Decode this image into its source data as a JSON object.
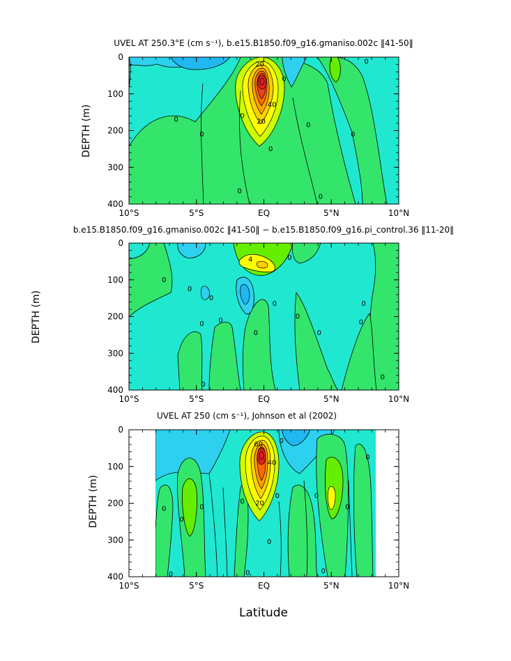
{
  "chart_data": [
    {
      "type": "heatmap",
      "title": "UVEL AT 250.3°E (cm s⁻¹), b.e15.B1850.f09_g16.gmaniso.002c ‖41-50‖",
      "ylabel": "DEPTH (m)",
      "xlabel": "",
      "x_ticks": [
        "10°S",
        "5°S",
        "EQ",
        "5°N",
        "10°N"
      ],
      "y_ticks": [
        "0",
        "100",
        "200",
        "300",
        "400"
      ],
      "xlim": [
        -10,
        10
      ],
      "ylim": [
        400,
        0
      ],
      "colors": [
        "#2ed0f0",
        "#20e8d0",
        "#33e66b",
        "#66ee00",
        "#ffff00",
        "#ffb000",
        "#ff6600",
        "#e22020"
      ],
      "contour_labels": [
        {
          "text": "20",
          "x": -0.3,
          "y": 20
        },
        {
          "text": "0",
          "x": -1.6,
          "y": 160
        },
        {
          "text": "0",
          "x": -6.5,
          "y": 170
        },
        {
          "text": "0",
          "x": -4.6,
          "y": 210
        },
        {
          "text": "40",
          "x": 0.6,
          "y": 130
        },
        {
          "text": "20",
          "x": -0.2,
          "y": 175
        },
        {
          "text": "0",
          "x": 0.5,
          "y": 250
        },
        {
          "text": "0",
          "x": 3.3,
          "y": 185
        },
        {
          "text": "0",
          "x": 6.6,
          "y": 210
        },
        {
          "text": "0",
          "x": 7.6,
          "y": 12
        },
        {
          "text": "0",
          "x": 1.5,
          "y": 60
        },
        {
          "text": "0",
          "x": -1.8,
          "y": 365
        },
        {
          "text": "0",
          "x": 4.2,
          "y": 380
        }
      ]
    },
    {
      "type": "heatmap",
      "title": "b.e15.B1850.f09_g16.gmaniso.002c ‖41-50‖ − b.e15.B1850.f09_g16.pi_control.36 ‖11-20‖",
      "ylabel": "DEPTH (m)",
      "xlabel": "",
      "x_ticks": [
        "10°S",
        "5°S",
        "EQ",
        "5°N",
        "10°N"
      ],
      "y_ticks": [
        "0",
        "100",
        "200",
        "300",
        "400"
      ],
      "xlim": [
        -10,
        10
      ],
      "ylim": [
        400,
        0
      ],
      "contour_labels": [
        {
          "text": "4",
          "x": -1.0,
          "y": 45
        },
        {
          "text": "0",
          "x": -7.4,
          "y": 100
        },
        {
          "text": "0",
          "x": -5.5,
          "y": 125
        },
        {
          "text": "0",
          "x": 1.9,
          "y": 40
        },
        {
          "text": "0",
          "x": -3.9,
          "y": 150
        },
        {
          "text": "0",
          "x": -4.6,
          "y": 220
        },
        {
          "text": "0",
          "x": -3.2,
          "y": 210
        },
        {
          "text": "0",
          "x": 0.8,
          "y": 165
        },
        {
          "text": "0",
          "x": -0.6,
          "y": 245
        },
        {
          "text": "0",
          "x": 2.5,
          "y": 200
        },
        {
          "text": "0",
          "x": 4.1,
          "y": 245
        },
        {
          "text": "0",
          "x": 7.4,
          "y": 165
        },
        {
          "text": "0",
          "x": 7.2,
          "y": 215
        },
        {
          "text": "0",
          "x": 8.8,
          "y": 365
        },
        {
          "text": "0",
          "x": -4.5,
          "y": 385
        }
      ]
    },
    {
      "type": "heatmap",
      "title": "UVEL AT 250 (cm s⁻¹), Johnson et al (2002)",
      "ylabel": "DEPTH (m)",
      "xlabel": "Latitude",
      "x_ticks": [
        "10°S",
        "5°S",
        "EQ",
        "5°N",
        "10°N"
      ],
      "y_ticks": [
        "0",
        "100",
        "200",
        "300",
        "400"
      ],
      "xlim": [
        -10,
        10
      ],
      "ylim": [
        400,
        0
      ],
      "data_extent_lat": [
        -8,
        8.2
      ],
      "contour_labels": [
        {
          "text": "60",
          "x": -0.4,
          "y": 40
        },
        {
          "text": "40",
          "x": 0.6,
          "y": 90
        },
        {
          "text": "20",
          "x": -0.3,
          "y": 200
        },
        {
          "text": "0",
          "x": 1.3,
          "y": 30
        },
        {
          "text": "0",
          "x": -7.4,
          "y": 215
        },
        {
          "text": "0",
          "x": -6.1,
          "y": 245
        },
        {
          "text": "0",
          "x": -4.6,
          "y": 210
        },
        {
          "text": "0",
          "x": -1.6,
          "y": 195
        },
        {
          "text": "0",
          "x": 1.0,
          "y": 180
        },
        {
          "text": "0",
          "x": 0.4,
          "y": 305
        },
        {
          "text": "0",
          "x": 3.9,
          "y": 180
        },
        {
          "text": "0",
          "x": 6.2,
          "y": 210
        },
        {
          "text": "0",
          "x": 7.7,
          "y": 75
        },
        {
          "text": "0",
          "x": 4.4,
          "y": 385
        },
        {
          "text": "0",
          "x": -6.9,
          "y": 393
        },
        {
          "text": "0",
          "x": -1.2,
          "y": 390
        }
      ]
    }
  ]
}
